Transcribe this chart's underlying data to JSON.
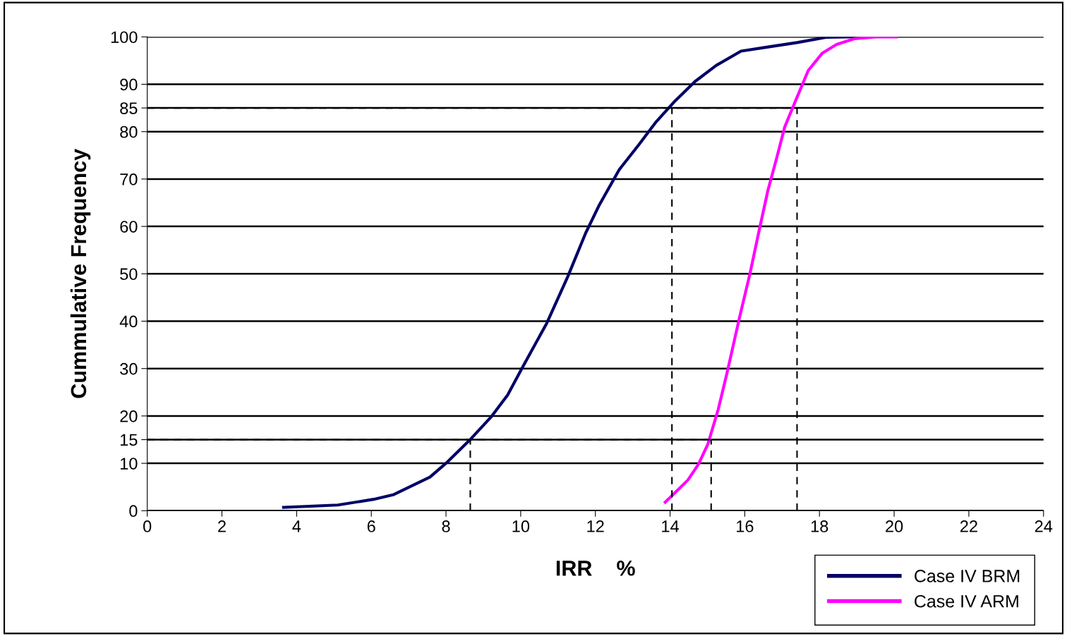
{
  "chart_data": {
    "type": "line",
    "xlabel": "IRR    %",
    "ylabel": "Cummulative Frequency",
    "xlim": [
      0,
      24
    ],
    "xticks": [
      0,
      2,
      4,
      6,
      8,
      10,
      12,
      14,
      16,
      18,
      20,
      22,
      24
    ],
    "ylim": [
      0,
      100
    ],
    "yticks": [
      0,
      10,
      15,
      20,
      30,
      40,
      50,
      60,
      70,
      80,
      85,
      90,
      100
    ],
    "grid": "y",
    "legend": "bottom right",
    "marker": "none",
    "series": [
      {
        "name": "Case IV BRM",
        "color": "#000066",
        "line_style": "solid",
        "x": [
          3.65,
          5.1,
          6.06,
          6.6,
          7.57,
          8.04,
          8.67,
          9.22,
          9.65,
          10.03,
          10.7,
          11.26,
          11.74,
          12.11,
          12.64,
          13.16,
          13.63,
          14.1,
          14.67,
          15.24,
          15.9,
          16.56,
          17.4,
          18.17,
          18.93
        ],
        "values": [
          0.7,
          1.2,
          2.4,
          3.4,
          7.1,
          10.3,
          15.2,
          19.9,
          24.4,
          30,
          39.6,
          49.4,
          58.6,
          64.6,
          72,
          77.2,
          82.1,
          86.2,
          90.6,
          94,
          97,
          97.8,
          98.8,
          99.9,
          100
        ]
      },
      {
        "name": "Case IV ARM",
        "color": "#ff00ff",
        "line_style": "solid",
        "x": [
          13.87,
          14.48,
          14.76,
          15.01,
          15.29,
          15.52,
          15.86,
          16.13,
          16.37,
          16.62,
          16.85,
          17.07,
          17.38,
          17.7,
          18.08,
          18.46,
          18.93,
          19.5,
          20.06
        ],
        "values": [
          1.8,
          6.5,
          9.8,
          14,
          21.4,
          28.9,
          40.8,
          49.7,
          58.6,
          67.6,
          74.3,
          81,
          86.9,
          92.9,
          96.6,
          98.4,
          99.6,
          100,
          100
        ]
      },
      {
        "color": "#000000",
        "line_style": "dashed",
        "x": [
          0,
          17.4
        ],
        "values": [
          85,
          85
        ]
      },
      {
        "color": "#000000",
        "line_style": "dashed",
        "x": [
          0,
          15.1
        ],
        "values": [
          15,
          15
        ]
      },
      {
        "color": "#000000",
        "line_style": "dashed",
        "x": [
          8.65,
          8.65
        ],
        "values": [
          0,
          15
        ]
      },
      {
        "color": "#000000",
        "line_style": "dashed",
        "x": [
          14.05,
          14.05
        ],
        "values": [
          0,
          85
        ]
      },
      {
        "color": "#000000",
        "line_style": "dashed",
        "x": [
          15.1,
          15.1
        ],
        "values": [
          0,
          15
        ]
      },
      {
        "color": "#000000",
        "line_style": "dashed",
        "x": [
          17.4,
          17.4
        ],
        "values": [
          0,
          85
        ]
      }
    ]
  }
}
